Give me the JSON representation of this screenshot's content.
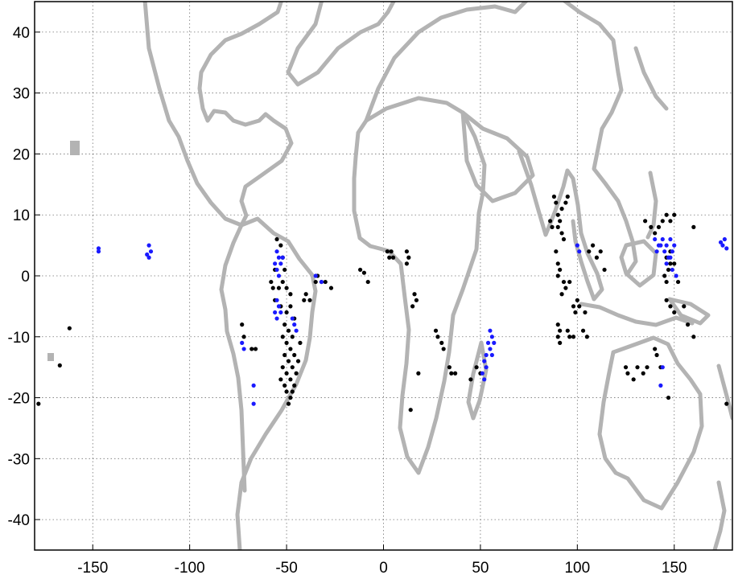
{
  "chart_data": {
    "type": "scatter",
    "title": "",
    "xlabel": "",
    "ylabel": "",
    "xlim": [
      -180,
      180
    ],
    "ylim": [
      -45,
      45
    ],
    "grid": true,
    "x_ticks": [
      -150,
      -100,
      -50,
      0,
      50,
      100,
      150
    ],
    "y_ticks": [
      40,
      30,
      20,
      10,
      0,
      -10,
      -20,
      -30,
      -40
    ],
    "colors": {
      "coastline": "#b3b3b3",
      "black_series": "#000000",
      "blue_series": "#1a1aff"
    },
    "series": [
      {
        "color": "#000000",
        "points": [
          [
            -162,
            -8.6
          ],
          [
            -167,
            -14.7
          ],
          [
            -178,
            -21
          ],
          [
            -55,
            6
          ],
          [
            -53,
            5
          ],
          [
            -52,
            3
          ],
          [
            -51,
            1
          ],
          [
            -56,
            1
          ],
          [
            -58,
            -1
          ],
          [
            -57,
            -2
          ],
          [
            -54,
            -2
          ],
          [
            -52,
            -1
          ],
          [
            -50,
            -2
          ],
          [
            -48,
            -3
          ],
          [
            -56,
            -4
          ],
          [
            -53,
            -5
          ],
          [
            -50,
            -6
          ],
          [
            -48,
            -5
          ],
          [
            -46,
            -7
          ],
          [
            -51,
            -8
          ],
          [
            -49,
            -9
          ],
          [
            -47,
            -10
          ],
          [
            -52,
            -10
          ],
          [
            -50,
            -11
          ],
          [
            -48,
            -12
          ],
          [
            -46,
            -13
          ],
          [
            -51,
            -13
          ],
          [
            -49,
            -14
          ],
          [
            -52,
            -15
          ],
          [
            -47,
            -15
          ],
          [
            -50,
            -16
          ],
          [
            -48,
            -17
          ],
          [
            -51,
            -18
          ],
          [
            -46,
            -18
          ],
          [
            -50,
            -19
          ],
          [
            -48,
            -20
          ],
          [
            -49,
            -21
          ],
          [
            -45,
            -16
          ],
          [
            -44,
            -14
          ],
          [
            -43,
            -11
          ],
          [
            -47,
            -19
          ],
          [
            -53,
            -17
          ],
          [
            -41,
            -4
          ],
          [
            -40,
            -3
          ],
          [
            -38,
            -4
          ],
          [
            -35,
            -1
          ],
          [
            -34,
            0
          ],
          [
            -32,
            -1
          ],
          [
            -30,
            -1
          ],
          [
            -27,
            -2
          ],
          [
            -73,
            -8
          ],
          [
            -72,
            -10
          ],
          [
            -68,
            -12
          ],
          [
            -66,
            -12
          ],
          [
            -12,
            1
          ],
          [
            -10,
            0.5
          ],
          [
            2,
            4
          ],
          [
            3,
            3
          ],
          [
            4,
            4
          ],
          [
            5,
            3
          ],
          [
            12,
            4
          ],
          [
            13,
            3
          ],
          [
            12,
            2
          ],
          [
            -8,
            -1
          ],
          [
            16,
            -3
          ],
          [
            17,
            -4
          ],
          [
            15,
            -5
          ],
          [
            27,
            -9
          ],
          [
            28,
            -10
          ],
          [
            30,
            -11
          ],
          [
            31,
            -12
          ],
          [
            34,
            -15
          ],
          [
            35,
            -16
          ],
          [
            37,
            -16
          ],
          [
            48,
            -15
          ],
          [
            50,
            -16
          ],
          [
            45,
            -17
          ],
          [
            18,
            -16
          ],
          [
            14,
            -22
          ],
          [
            88,
            13
          ],
          [
            89,
            12
          ],
          [
            90,
            10
          ],
          [
            91,
            9
          ],
          [
            90,
            8
          ],
          [
            92,
            7
          ],
          [
            93,
            6
          ],
          [
            87,
            8
          ],
          [
            86,
            9
          ],
          [
            92,
            11
          ],
          [
            94,
            12
          ],
          [
            95,
            13
          ],
          [
            89,
            4
          ],
          [
            90,
            2
          ],
          [
            91,
            1
          ],
          [
            90,
            0
          ],
          [
            93,
            -1
          ],
          [
            94,
            -2
          ],
          [
            96,
            -1
          ],
          [
            92,
            -3
          ],
          [
            98,
            -5
          ],
          [
            99,
            -6
          ],
          [
            100,
            -4
          ],
          [
            101,
            -5
          ],
          [
            104,
            -6
          ],
          [
            106,
            4
          ],
          [
            108,
            5
          ],
          [
            110,
            3
          ],
          [
            112,
            4
          ],
          [
            114,
            1
          ],
          [
            90,
            -8
          ],
          [
            91,
            -9
          ],
          [
            90,
            -10
          ],
          [
            91,
            -11
          ],
          [
            96,
            -10
          ],
          [
            95,
            -9
          ],
          [
            98,
            -10
          ],
          [
            103,
            -9
          ],
          [
            105,
            -10
          ],
          [
            135,
            9
          ],
          [
            138,
            8
          ],
          [
            140,
            7
          ],
          [
            142,
            8
          ],
          [
            144,
            9
          ],
          [
            146,
            10
          ],
          [
            148,
            9
          ],
          [
            150,
            10
          ],
          [
            147,
            1
          ],
          [
            148,
            2
          ],
          [
            146,
            3
          ],
          [
            148,
            4
          ],
          [
            150,
            2
          ],
          [
            145,
            0
          ],
          [
            146,
            -1
          ],
          [
            152,
            -1
          ],
          [
            155,
            -5
          ],
          [
            148,
            -5
          ],
          [
            146,
            -4
          ],
          [
            150,
            -6
          ],
          [
            157,
            -8
          ],
          [
            160,
            -10
          ],
          [
            125,
            -15
          ],
          [
            126,
            -16
          ],
          [
            129,
            -17
          ],
          [
            131,
            -15
          ],
          [
            134,
            -16
          ],
          [
            136,
            -15
          ],
          [
            140,
            -12
          ],
          [
            141,
            -13
          ],
          [
            143,
            -15
          ],
          [
            147,
            -20
          ],
          [
            160,
            8
          ],
          [
            177,
            -21
          ]
        ]
      },
      {
        "color": "#1a1aff",
        "points": [
          [
            -147,
            4.5
          ],
          [
            -147,
            4
          ],
          [
            -121,
            5
          ],
          [
            -120,
            4
          ],
          [
            -122,
            3.5
          ],
          [
            -121,
            3
          ],
          [
            -55,
            4
          ],
          [
            -54,
            3
          ],
          [
            -53,
            2
          ],
          [
            -55,
            1
          ],
          [
            -54,
            0
          ],
          [
            -56,
            2
          ],
          [
            -52,
            3
          ],
          [
            -55,
            -4
          ],
          [
            -54,
            -5
          ],
          [
            -53,
            -6
          ],
          [
            -56,
            -6
          ],
          [
            -55,
            -7
          ],
          [
            -47,
            -7
          ],
          [
            -46,
            -8
          ],
          [
            -45,
            -9
          ],
          [
            -32,
            -1
          ],
          [
            -35,
            0
          ],
          [
            -73,
            -11
          ],
          [
            -72,
            -12
          ],
          [
            -67,
            -18
          ],
          [
            -67,
            -21
          ],
          [
            55,
            -9
          ],
          [
            56,
            -10
          ],
          [
            54,
            -11
          ],
          [
            55,
            -12
          ],
          [
            53,
            -13
          ],
          [
            52,
            -14
          ],
          [
            53,
            -15
          ],
          [
            51,
            -16
          ],
          [
            52,
            -17
          ],
          [
            57,
            -11
          ],
          [
            56,
            -13
          ],
          [
            100,
            5
          ],
          [
            101,
            4
          ],
          [
            140,
            6
          ],
          [
            142,
            5
          ],
          [
            144,
            6
          ],
          [
            146,
            5
          ],
          [
            148,
            6
          ],
          [
            150,
            5
          ],
          [
            149,
            4
          ],
          [
            147,
            3
          ],
          [
            145,
            4
          ],
          [
            143,
            5
          ],
          [
            141,
            4
          ],
          [
            148,
            3
          ],
          [
            146,
            2
          ],
          [
            149,
            1
          ],
          [
            151,
            0
          ],
          [
            144,
            -15
          ],
          [
            143,
            -18
          ],
          [
            174,
            5.5
          ],
          [
            175,
            5
          ],
          [
            176,
            6
          ],
          [
            177,
            4.5
          ]
        ]
      }
    ]
  }
}
